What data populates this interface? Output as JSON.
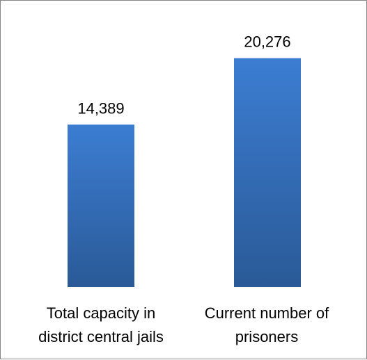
{
  "chart_data": {
    "type": "bar",
    "categories": [
      "Total capacity in district central jails",
      "Current number of prisoners"
    ],
    "category_lines": [
      [
        "Total capacity in",
        "district central jails"
      ],
      [
        "Current number of",
        "prisoners"
      ]
    ],
    "values": [
      14389,
      20276
    ],
    "data_labels": [
      "14,389",
      "20,276"
    ],
    "title": "",
    "xlabel": "",
    "ylabel": "",
    "ylim": [
      0,
      25000
    ],
    "grid": false,
    "legend": "none",
    "bar_color_top": "#3c7dd2",
    "bar_color_bottom": "#2a5a97",
    "border_color": "#868686"
  }
}
